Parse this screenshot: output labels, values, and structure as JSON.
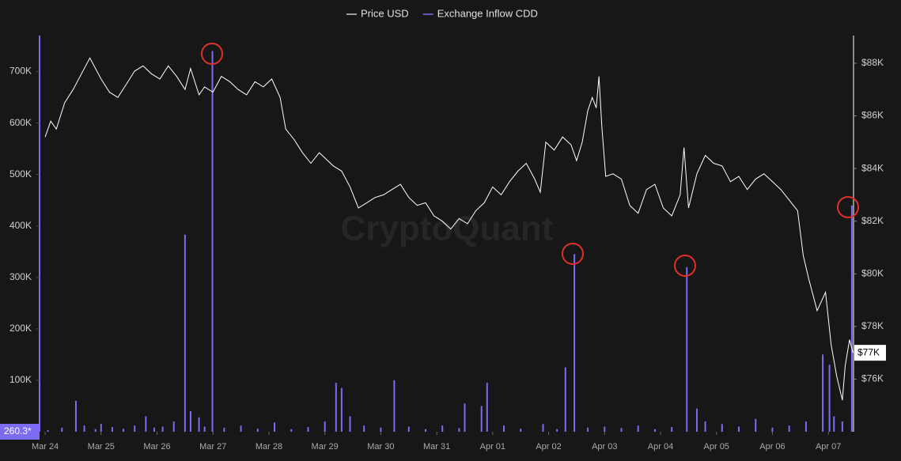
{
  "chart_data": {
    "type": "line",
    "watermark": "CryptoQuant",
    "legend": "top",
    "xlim": [
      -0.1,
      14.45
    ],
    "xticks": [
      {
        "value": 0,
        "label": "Mar 24"
      },
      {
        "value": 1,
        "label": "Mar 25"
      },
      {
        "value": 2,
        "label": "Mar 26"
      },
      {
        "value": 3,
        "label": "Mar 27"
      },
      {
        "value": 4,
        "label": "Mar 28"
      },
      {
        "value": 5,
        "label": "Mar 29"
      },
      {
        "value": 6,
        "label": "Mar 30"
      },
      {
        "value": 7,
        "label": "Mar 31"
      },
      {
        "value": 8,
        "label": "Apr 01"
      },
      {
        "value": 9,
        "label": "Apr 02"
      },
      {
        "value": 10,
        "label": "Apr 03"
      },
      {
        "value": 11,
        "label": "Apr 04"
      },
      {
        "value": 12,
        "label": "Apr 05"
      },
      {
        "value": 13,
        "label": "Apr 06"
      },
      {
        "value": 14,
        "label": "Apr 07"
      }
    ],
    "ylim": [
      0,
      770000
    ],
    "yticks": [
      {
        "value": 100000,
        "label": "100K"
      },
      {
        "value": 200000,
        "label": "200K"
      },
      {
        "value": 300000,
        "label": "300K"
      },
      {
        "value": 400000,
        "label": "400K"
      },
      {
        "value": 500000,
        "label": "500K"
      },
      {
        "value": 600000,
        "label": "600K"
      },
      {
        "value": 700000,
        "label": "700K"
      }
    ],
    "y2lim": [
      74000,
      89050
    ],
    "y2ticks": [
      {
        "value": 76000,
        "label": "$76K"
      },
      {
        "value": 78000,
        "label": "$78K"
      },
      {
        "value": 80000,
        "label": "$80K"
      },
      {
        "value": 82000,
        "label": "$82K"
      },
      {
        "value": 84000,
        "label": "$84K"
      },
      {
        "value": 86000,
        "label": "$86K"
      },
      {
        "value": 88000,
        "label": "$88K"
      }
    ],
    "current_inflow_label": "260.3*",
    "current_price_label": "$77K",
    "series": [
      {
        "name": "Price USD",
        "color": "#ffffff",
        "axis": "y2",
        "type": "line",
        "x": [
          0,
          0.1,
          0.2,
          0.35,
          0.5,
          0.65,
          0.8,
          0.9,
          1.0,
          1.15,
          1.3,
          1.45,
          1.6,
          1.75,
          1.9,
          2.05,
          2.2,
          2.35,
          2.5,
          2.6,
          2.75,
          2.85,
          3.0,
          3.15,
          3.3,
          3.45,
          3.6,
          3.75,
          3.9,
          4.05,
          4.2,
          4.3,
          4.45,
          4.6,
          4.75,
          4.9,
          5.0,
          5.15,
          5.3,
          5.45,
          5.6,
          5.75,
          5.9,
          6.05,
          6.2,
          6.35,
          6.5,
          6.65,
          6.8,
          6.95,
          7.1,
          7.25,
          7.4,
          7.55,
          7.7,
          7.85,
          8.0,
          8.15,
          8.3,
          8.45,
          8.6,
          8.75,
          8.85,
          8.95,
          9.1,
          9.25,
          9.4,
          9.5,
          9.6,
          9.7,
          9.78,
          9.85,
          9.9,
          9.95,
          10.02,
          10.15,
          10.3,
          10.45,
          10.6,
          10.75,
          10.9,
          11.05,
          11.2,
          11.35,
          11.42,
          11.5,
          11.65,
          11.8,
          11.95,
          12.1,
          12.25,
          12.4,
          12.55,
          12.7,
          12.85,
          13.0,
          13.15,
          13.3,
          13.45,
          13.55,
          13.65,
          13.8,
          13.95,
          14.05,
          14.15,
          14.25,
          14.3,
          14.38,
          14.44
        ],
        "values": [
          85200,
          85800,
          85500,
          86500,
          87000,
          87600,
          88200,
          87800,
          87400,
          86900,
          86700,
          87200,
          87700,
          87900,
          87600,
          87400,
          87900,
          87500,
          87000,
          87800,
          86800,
          87100,
          86900,
          87500,
          87300,
          87000,
          86800,
          87300,
          87100,
          87400,
          86700,
          85500,
          85100,
          84600,
          84200,
          84600,
          84400,
          84100,
          83900,
          83300,
          82500,
          82700,
          82900,
          83000,
          83200,
          83400,
          82900,
          82600,
          82700,
          82200,
          82000,
          81700,
          82100,
          81900,
          82400,
          82700,
          83300,
          83000,
          83500,
          83900,
          84200,
          83600,
          83100,
          85000,
          84700,
          85200,
          84900,
          84300,
          85000,
          86200,
          86700,
          86300,
          87500,
          85600,
          83700,
          83800,
          83600,
          82600,
          82300,
          83200,
          83400,
          82500,
          82200,
          83000,
          84800,
          82500,
          83800,
          84500,
          84200,
          84100,
          83500,
          83700,
          83200,
          83600,
          83800,
          83500,
          83200,
          82800,
          82400,
          80700,
          79800,
          78600,
          79300,
          77300,
          76100,
          75200,
          76500,
          77500,
          77000
        ]
      },
      {
        "name": "Exchange Inflow CDD",
        "color": "#7b6cf2",
        "axis": "y",
        "type": "bar",
        "x": [
          0.05,
          0.3,
          0.55,
          0.7,
          0.9,
          1.0,
          1.2,
          1.4,
          1.6,
          1.8,
          1.95,
          2.1,
          2.3,
          2.5,
          2.6,
          2.75,
          2.85,
          2.99,
          3.2,
          3.5,
          3.8,
          4.1,
          4.4,
          4.7,
          5.0,
          5.2,
          5.3,
          5.45,
          5.7,
          6.0,
          6.24,
          6.5,
          6.8,
          7.1,
          7.4,
          7.5,
          7.8,
          7.9,
          8.2,
          8.5,
          8.9,
          9.15,
          9.3,
          9.46,
          9.7,
          10.0,
          10.3,
          10.6,
          10.9,
          11.2,
          11.47,
          11.65,
          11.8,
          12.1,
          12.4,
          12.7,
          13.0,
          13.3,
          13.6,
          13.9,
          14.02,
          14.1,
          14.25,
          14.42
        ],
        "values": [
          3000,
          8000,
          60000,
          12000,
          5000,
          15000,
          9000,
          6000,
          12000,
          30000,
          8000,
          10000,
          20000,
          383000,
          40000,
          28000,
          10000,
          740000,
          8000,
          12000,
          6000,
          18000,
          5000,
          9000,
          20000,
          95000,
          85000,
          30000,
          12000,
          8000,
          100000,
          10000,
          5000,
          12000,
          7000,
          55000,
          50000,
          95000,
          12000,
          6000,
          15000,
          5000,
          125000,
          345000,
          8000,
          10000,
          7000,
          12000,
          5000,
          9000,
          320000,
          45000,
          20000,
          15000,
          10000,
          25000,
          8000,
          12000,
          20000,
          150000,
          130000,
          30000,
          20000,
          440000
        ]
      }
    ]
  }
}
